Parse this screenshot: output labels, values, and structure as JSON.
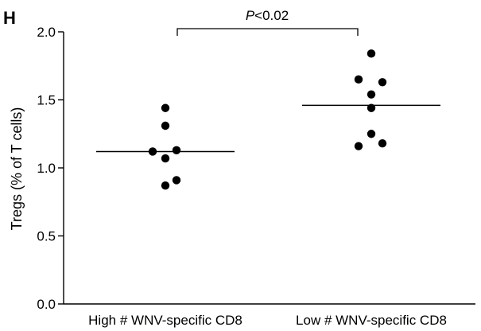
{
  "panel_label": "H",
  "chart_data": {
    "type": "scatter",
    "title": "",
    "xlabel": "",
    "ylabel": "Tregs (% of T cells)",
    "ylim": [
      0,
      2.0
    ],
    "yticks": [
      "0.0",
      "0.5",
      "1.0",
      "1.5",
      "2.0"
    ],
    "categories": [
      "High # WNV-specific CD8",
      "Low # WNV-specific CD8"
    ],
    "series": [
      {
        "category": "High # WNV-specific CD8",
        "values": [
          1.44,
          1.31,
          1.12,
          1.13,
          1.07,
          0.91,
          0.87
        ],
        "mean": 1.12
      },
      {
        "category": "Low # WNV-specific CD8",
        "values": [
          1.84,
          1.65,
          1.63,
          1.54,
          1.44,
          1.25,
          1.18,
          1.16
        ],
        "mean": 1.46
      }
    ],
    "annotation": {
      "italic": "P",
      "text": "<0.02"
    },
    "grid": false
  }
}
